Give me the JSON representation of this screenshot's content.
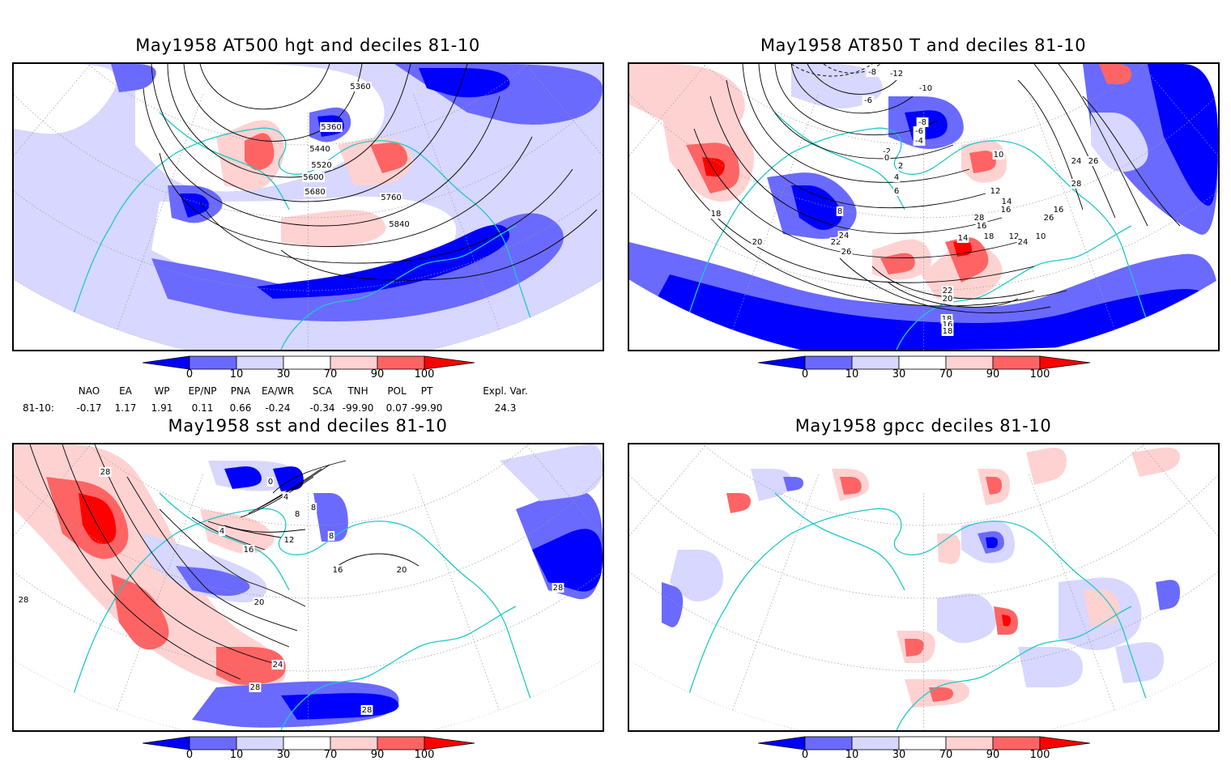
{
  "panels": [
    {
      "title": "May1958 AT500 hgt and deciles 81-10",
      "contour_labels": [
        "5360",
        "5360",
        "5440",
        "5520",
        "5600",
        "5680",
        "5760",
        "5840"
      ]
    },
    {
      "title": "May1958 AT850 T and deciles 81-10",
      "contour_labels": [
        "-12",
        "-10",
        "-8",
        "-6",
        "-8",
        "-6",
        "-4",
        "-2",
        "0",
        "2",
        "4",
        "6",
        "8",
        "10",
        "12",
        "14",
        "16",
        "18",
        "20",
        "22",
        "24",
        "26",
        "28",
        "16",
        "18",
        "12",
        "10",
        "14",
        "16",
        "24",
        "26",
        "28",
        "26",
        "24",
        "22",
        "20",
        "18",
        "16",
        "18"
      ]
    },
    {
      "title": "May1958 sst and deciles 81-10",
      "contour_labels": [
        "0",
        "4",
        "4",
        "8",
        "8",
        "12",
        "16",
        "16",
        "20",
        "20",
        "24",
        "28",
        "28",
        "28",
        "28",
        "8",
        "28"
      ]
    },
    {
      "title": "May1958 gpcc deciles 81-10",
      "contour_labels": []
    }
  ],
  "colorbar": {
    "ticks": [
      "0",
      "10",
      "30",
      "70",
      "90",
      "100"
    ],
    "colors": [
      "#0000ff",
      "#6a6aff",
      "#d7d7ff",
      "#ffffff",
      "#ffd2d2",
      "#ff6464",
      "#ff0000"
    ]
  },
  "indices": {
    "headers": [
      "NAO",
      "EA",
      "WP",
      "EP/NP",
      "PNA",
      "EA/WR",
      "SCA",
      "TNH",
      "POL",
      "PT",
      "Expl. Var."
    ],
    "row_label": "81-10:",
    "values": [
      "-0.17",
      "1.17",
      "1.91",
      "0.11",
      "0.66",
      "-0.24",
      "-0.34",
      "-99.90",
      "0.07",
      "-99.90",
      "24.3"
    ]
  }
}
